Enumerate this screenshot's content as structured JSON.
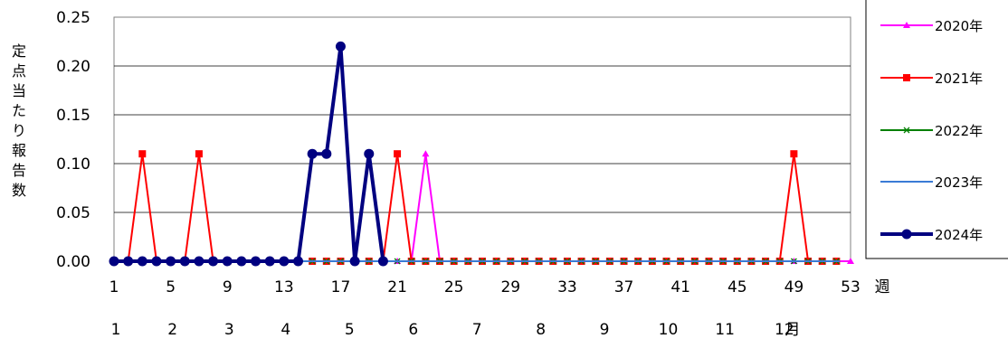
{
  "chart_data": {
    "type": "line",
    "ylabel": "定点当たり報告数",
    "xlabel": "週",
    "month_label": "月",
    "ylim": [
      0,
      0.25
    ],
    "y_ticks": [
      "0.00",
      "0.05",
      "0.10",
      "0.15",
      "0.20",
      "0.25"
    ],
    "x_ticks": [
      "1",
      "5",
      "9",
      "13",
      "17",
      "21",
      "25",
      "29",
      "33",
      "37",
      "41",
      "45",
      "49",
      "53"
    ],
    "month_ticks": [
      "1",
      "2",
      "3",
      "4",
      "5",
      "6",
      "7",
      "8",
      "9",
      "10",
      "11",
      "12"
    ],
    "grid": true,
    "legend_position": "right",
    "series": [
      {
        "name": "2020年",
        "color": "#ff00ff",
        "marker": "triangle",
        "points": [
          [
            1,
            0
          ],
          [
            2,
            0
          ],
          [
            3,
            0
          ],
          [
            4,
            0
          ],
          [
            5,
            0
          ],
          [
            6,
            0
          ],
          [
            7,
            0
          ],
          [
            8,
            0
          ],
          [
            9,
            0
          ],
          [
            10,
            0
          ],
          [
            11,
            0
          ],
          [
            12,
            0
          ],
          [
            13,
            0
          ],
          [
            14,
            0
          ],
          [
            15,
            0
          ],
          [
            16,
            0
          ],
          [
            17,
            0
          ],
          [
            18,
            0
          ],
          [
            19,
            0
          ],
          [
            20,
            0
          ],
          [
            21,
            0
          ],
          [
            22,
            0
          ],
          [
            23,
            0.11
          ],
          [
            24,
            0
          ],
          [
            25,
            0
          ],
          [
            26,
            0
          ],
          [
            27,
            0
          ],
          [
            28,
            0
          ],
          [
            29,
            0
          ],
          [
            30,
            0
          ],
          [
            31,
            0
          ],
          [
            32,
            0
          ],
          [
            33,
            0
          ],
          [
            34,
            0
          ],
          [
            35,
            0
          ],
          [
            36,
            0
          ],
          [
            37,
            0
          ],
          [
            38,
            0
          ],
          [
            39,
            0
          ],
          [
            40,
            0
          ],
          [
            41,
            0
          ],
          [
            42,
            0
          ],
          [
            43,
            0
          ],
          [
            44,
            0
          ],
          [
            45,
            0
          ],
          [
            46,
            0
          ],
          [
            47,
            0
          ],
          [
            48,
            0
          ],
          [
            49,
            0
          ],
          [
            50,
            0
          ],
          [
            51,
            0
          ],
          [
            52,
            0
          ],
          [
            53,
            0
          ]
        ]
      },
      {
        "name": "2021年",
        "color": "#ff0000",
        "marker": "square",
        "points": [
          [
            1,
            0
          ],
          [
            2,
            0
          ],
          [
            3,
            0.11
          ],
          [
            4,
            0
          ],
          [
            5,
            0
          ],
          [
            6,
            0
          ],
          [
            7,
            0.11
          ],
          [
            8,
            0
          ],
          [
            9,
            0
          ],
          [
            10,
            0
          ],
          [
            11,
            0
          ],
          [
            12,
            0
          ],
          [
            13,
            0
          ],
          [
            14,
            0
          ],
          [
            15,
            0
          ],
          [
            16,
            0
          ],
          [
            17,
            0
          ],
          [
            18,
            0
          ],
          [
            19,
            0
          ],
          [
            20,
            0
          ],
          [
            21,
            0.11
          ],
          [
            22,
            0
          ],
          [
            23,
            0
          ],
          [
            24,
            0
          ],
          [
            25,
            0
          ],
          [
            26,
            0
          ],
          [
            27,
            0
          ],
          [
            28,
            0
          ],
          [
            29,
            0
          ],
          [
            30,
            0
          ],
          [
            31,
            0
          ],
          [
            32,
            0
          ],
          [
            33,
            0
          ],
          [
            34,
            0
          ],
          [
            35,
            0
          ],
          [
            36,
            0
          ],
          [
            37,
            0
          ],
          [
            38,
            0
          ],
          [
            39,
            0
          ],
          [
            40,
            0
          ],
          [
            41,
            0
          ],
          [
            42,
            0
          ],
          [
            43,
            0
          ],
          [
            44,
            0
          ],
          [
            45,
            0
          ],
          [
            46,
            0
          ],
          [
            47,
            0
          ],
          [
            48,
            0
          ],
          [
            49,
            0.11
          ],
          [
            50,
            0
          ],
          [
            51,
            0
          ],
          [
            52,
            0
          ]
        ]
      },
      {
        "name": "2022年",
        "color": "#008000",
        "marker": "x",
        "points": [
          [
            1,
            0
          ],
          [
            2,
            0
          ],
          [
            3,
            0
          ],
          [
            4,
            0
          ],
          [
            5,
            0
          ],
          [
            6,
            0
          ],
          [
            7,
            0
          ],
          [
            8,
            0
          ],
          [
            9,
            0
          ],
          [
            10,
            0
          ],
          [
            11,
            0
          ],
          [
            12,
            0
          ],
          [
            13,
            0
          ],
          [
            14,
            0
          ],
          [
            15,
            0
          ],
          [
            16,
            0
          ],
          [
            17,
            0
          ],
          [
            18,
            0
          ],
          [
            19,
            0
          ],
          [
            20,
            0
          ],
          [
            21,
            0
          ],
          [
            22,
            0
          ],
          [
            23,
            0
          ],
          [
            24,
            0
          ],
          [
            25,
            0
          ],
          [
            26,
            0
          ],
          [
            27,
            0
          ],
          [
            28,
            0
          ],
          [
            29,
            0
          ],
          [
            30,
            0
          ],
          [
            31,
            0
          ],
          [
            32,
            0
          ],
          [
            33,
            0
          ],
          [
            34,
            0
          ],
          [
            35,
            0
          ],
          [
            36,
            0
          ],
          [
            37,
            0
          ],
          [
            38,
            0
          ],
          [
            39,
            0
          ],
          [
            40,
            0
          ],
          [
            41,
            0
          ],
          [
            42,
            0
          ],
          [
            43,
            0
          ],
          [
            44,
            0
          ],
          [
            45,
            0
          ],
          [
            46,
            0
          ],
          [
            47,
            0
          ],
          [
            48,
            0
          ],
          [
            49,
            0
          ],
          [
            50,
            0
          ],
          [
            51,
            0
          ],
          [
            52,
            0
          ]
        ]
      },
      {
        "name": "2023年",
        "color": "#3a7bd5",
        "marker": "dash",
        "points": [
          [
            1,
            0
          ],
          [
            2,
            0
          ],
          [
            3,
            0
          ],
          [
            4,
            0
          ],
          [
            5,
            0
          ],
          [
            6,
            0
          ],
          [
            7,
            0
          ],
          [
            8,
            0
          ],
          [
            9,
            0
          ],
          [
            10,
            0
          ],
          [
            11,
            0
          ],
          [
            12,
            0
          ],
          [
            13,
            0
          ],
          [
            14,
            0
          ],
          [
            15,
            0
          ],
          [
            16,
            0
          ],
          [
            17,
            0
          ],
          [
            18,
            0
          ],
          [
            19,
            0
          ],
          [
            20,
            0
          ],
          [
            21,
            0
          ],
          [
            22,
            0
          ],
          [
            23,
            0
          ],
          [
            24,
            0
          ],
          [
            25,
            0
          ],
          [
            26,
            0
          ],
          [
            27,
            0
          ],
          [
            28,
            0
          ],
          [
            29,
            0
          ],
          [
            30,
            0
          ],
          [
            31,
            0
          ],
          [
            32,
            0
          ],
          [
            33,
            0
          ],
          [
            34,
            0
          ],
          [
            35,
            0
          ],
          [
            36,
            0
          ],
          [
            37,
            0
          ],
          [
            38,
            0
          ],
          [
            39,
            0
          ],
          [
            40,
            0
          ],
          [
            41,
            0
          ],
          [
            42,
            0
          ],
          [
            43,
            0
          ],
          [
            44,
            0
          ],
          [
            45,
            0
          ],
          [
            46,
            0
          ],
          [
            47,
            0
          ],
          [
            48,
            0
          ],
          [
            49,
            0
          ],
          [
            50,
            0
          ],
          [
            51,
            0
          ],
          [
            52,
            0
          ]
        ]
      },
      {
        "name": "2024年",
        "color": "#000080",
        "marker": "circle",
        "points": [
          [
            1,
            0
          ],
          [
            2,
            0
          ],
          [
            3,
            0
          ],
          [
            4,
            0
          ],
          [
            5,
            0
          ],
          [
            6,
            0
          ],
          [
            7,
            0
          ],
          [
            8,
            0
          ],
          [
            9,
            0
          ],
          [
            10,
            0
          ],
          [
            11,
            0
          ],
          [
            12,
            0
          ],
          [
            13,
            0
          ],
          [
            14,
            0
          ],
          [
            15,
            0.11
          ],
          [
            16,
            0.11
          ],
          [
            17,
            0.22
          ],
          [
            18,
            0
          ],
          [
            19,
            0.11
          ],
          [
            20,
            0
          ]
        ]
      }
    ]
  }
}
